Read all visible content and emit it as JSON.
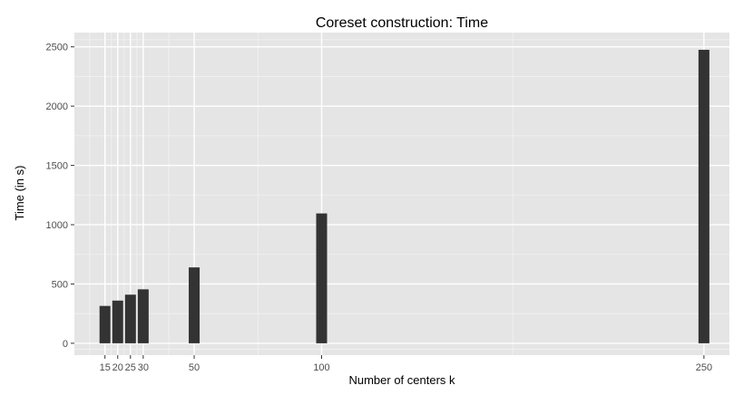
{
  "chart_data": {
    "type": "bar",
    "title": "Coreset construction: Time",
    "xlabel": "Number of centers k",
    "ylabel": "Time (in s)",
    "x": [
      15,
      20,
      25,
      30,
      50,
      100,
      250
    ],
    "values": [
      315,
      360,
      410,
      455,
      640,
      1095,
      2475
    ],
    "x_ticks": [
      {
        "label": "15",
        "value": 15
      },
      {
        "label": "20",
        "value": 20
      },
      {
        "label": "25",
        "value": 25
      },
      {
        "label": "30",
        "value": 30
      },
      {
        "label": "50",
        "value": 50
      },
      {
        "label": "100",
        "value": 100
      },
      {
        "label": "250",
        "value": 250
      }
    ],
    "y_ticks": [
      {
        "label": "0",
        "value": 0
      },
      {
        "label": "500",
        "value": 500
      },
      {
        "label": "1000",
        "value": 1000
      },
      {
        "label": "1500",
        "value": 1500
      },
      {
        "label": "2000",
        "value": 2000
      },
      {
        "label": "2500",
        "value": 2500
      }
    ],
    "xlim": [
      3,
      260
    ],
    "ylim": [
      -100,
      2620
    ],
    "grid": true,
    "bar_color": "#333333",
    "panel_color": "#e5e5e5",
    "grid_color": "#ffffff"
  }
}
